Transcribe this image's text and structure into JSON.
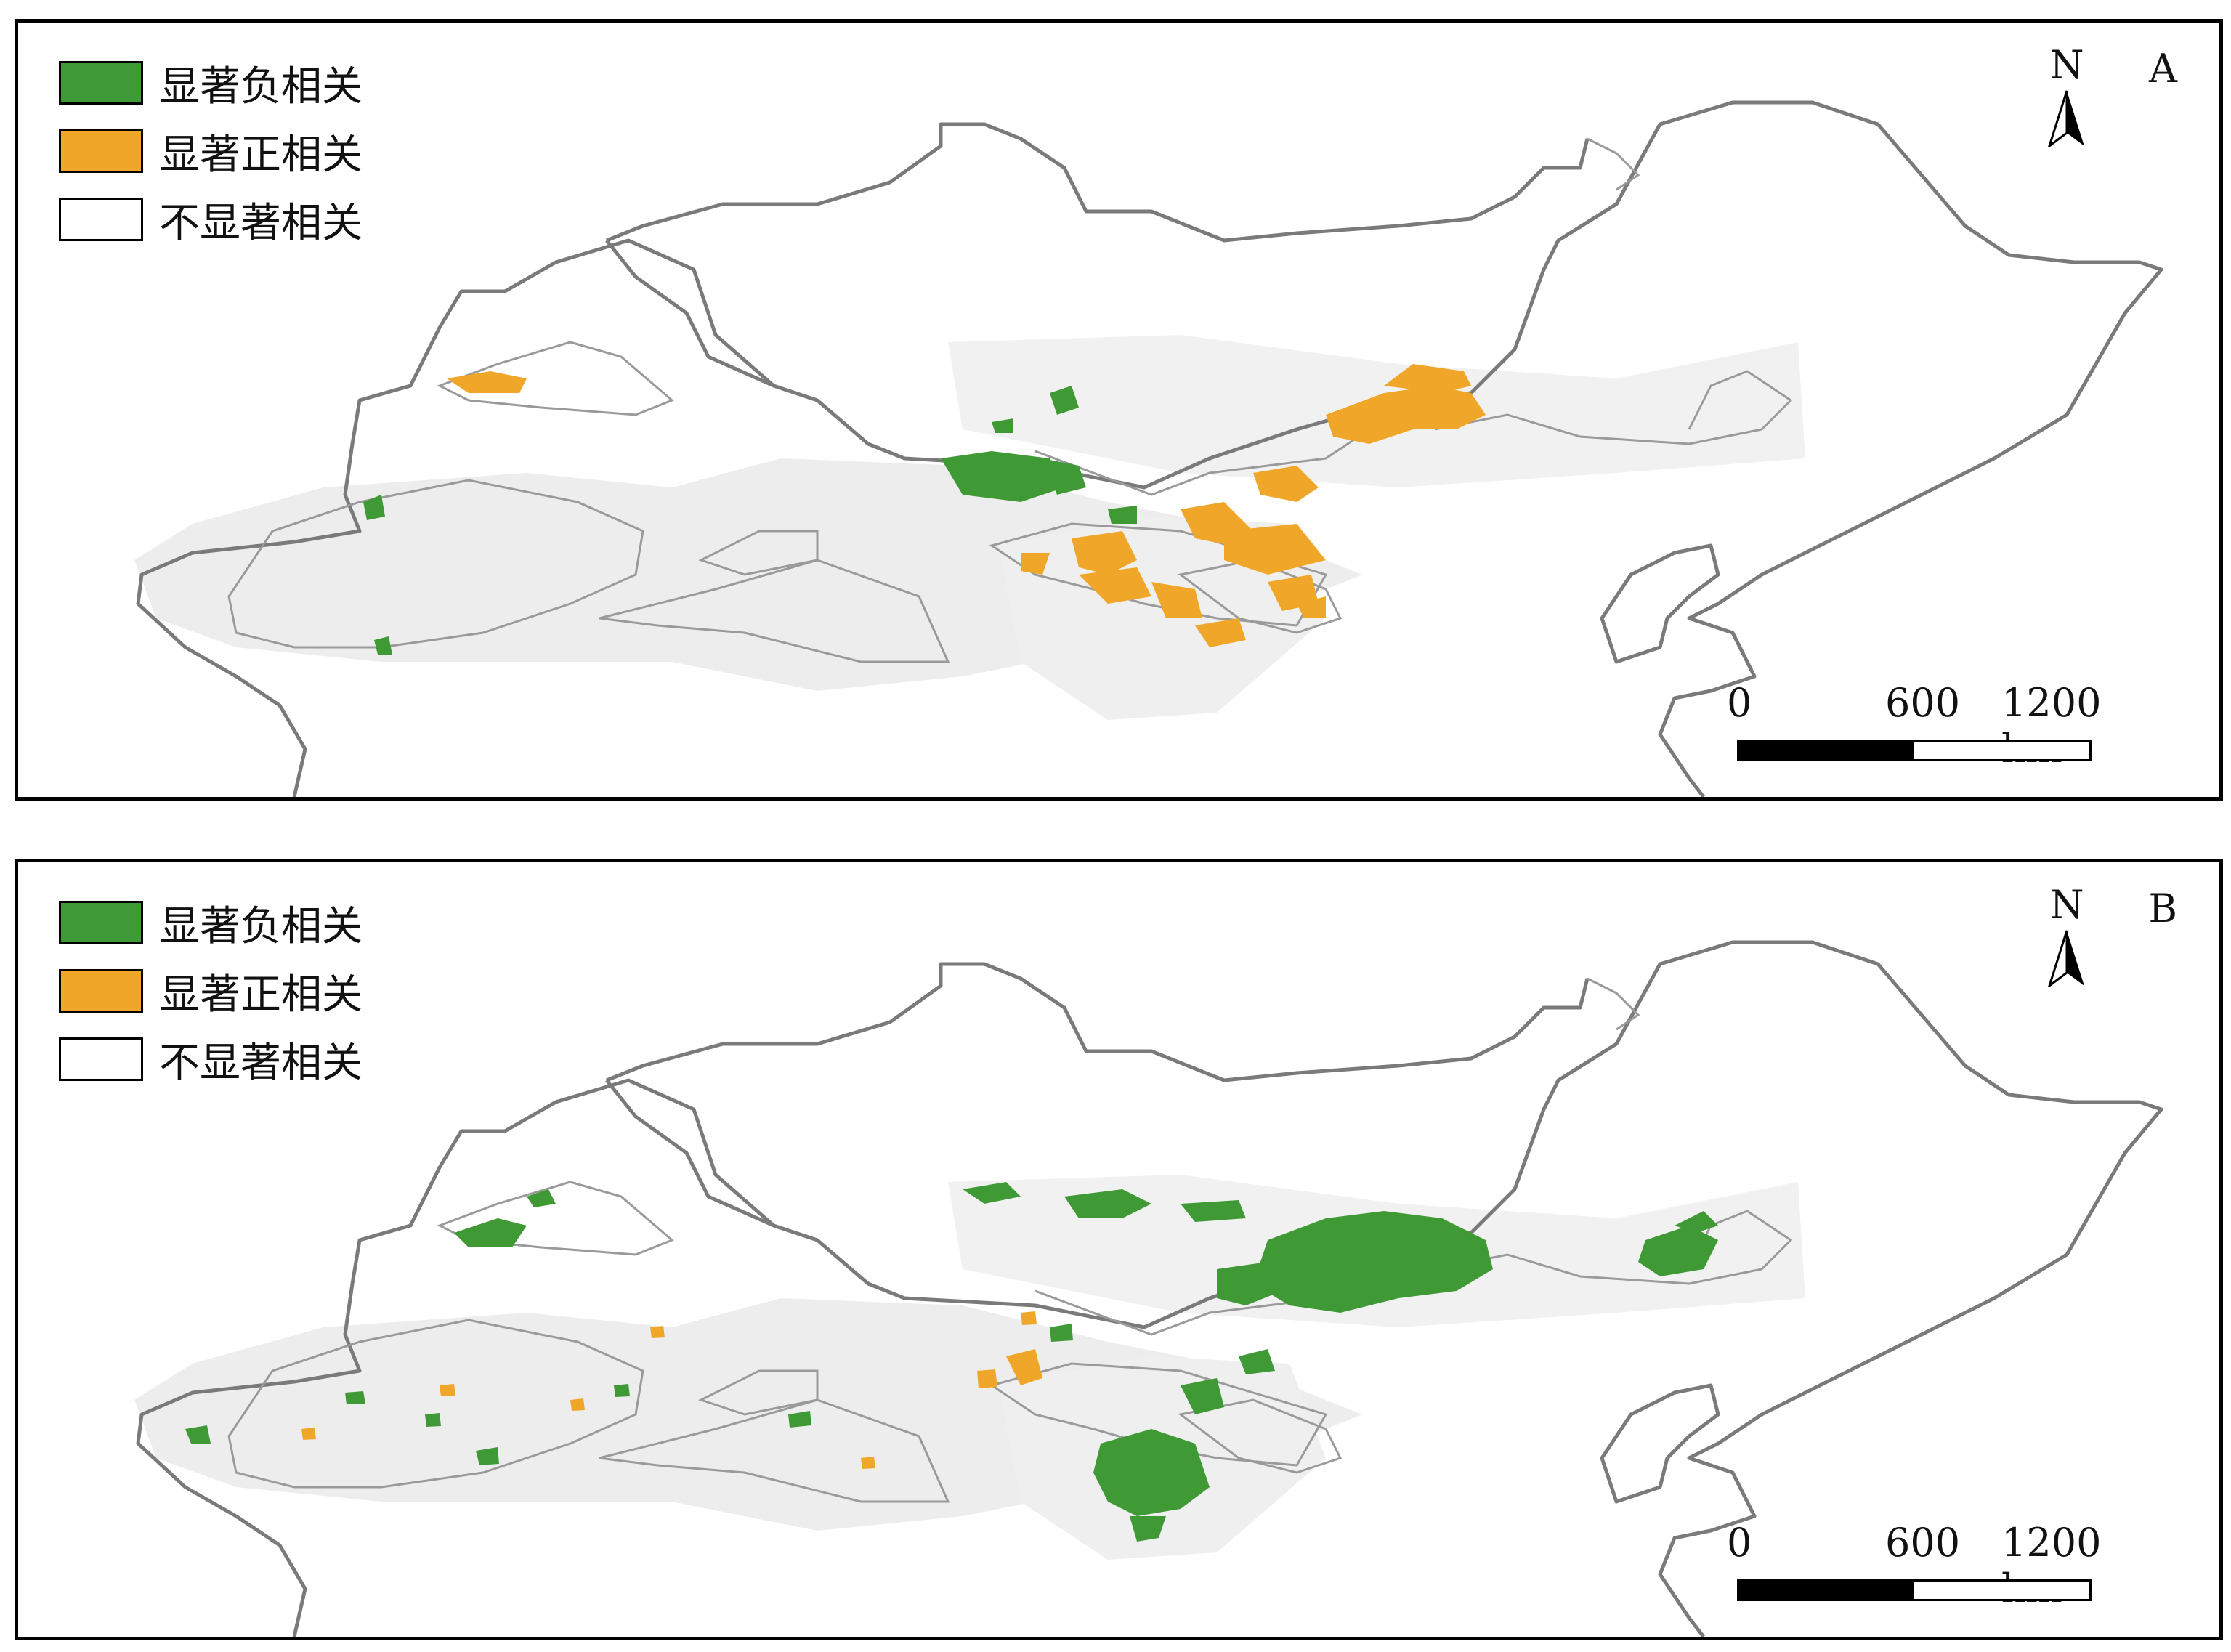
{
  "legend": {
    "items": [
      {
        "label": "显著负相关",
        "color": "#3f9a35"
      },
      {
        "label": "显著正相关",
        "color": "#f0a729"
      },
      {
        "label": "不显著相关",
        "color": "#ffffff"
      }
    ]
  },
  "panels": [
    {
      "id": "A",
      "letter": "A",
      "dominant_class": "显著正相关"
    },
    {
      "id": "B",
      "letter": "B",
      "dominant_class": "显著负相关"
    }
  ],
  "north_arrow": {
    "label": "N"
  },
  "scale_bar": {
    "ticks": [
      "0",
      "600",
      "1200 km"
    ]
  },
  "colors": {
    "boundary": "#7a7a7a",
    "inner_boundary": "#9a9a9a",
    "study_area": "#eeeeee",
    "negative": "#3f9a35",
    "positive": "#f0a729"
  }
}
